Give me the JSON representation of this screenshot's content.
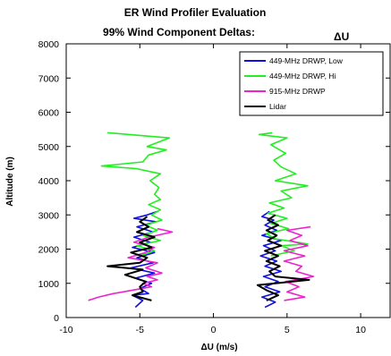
{
  "chart_data": {
    "type": "line",
    "title": "ER Wind Profiler Evaluation",
    "subtitle": "99% Wind Component Deltas:",
    "subtitle_symbol": "ΔU",
    "xlabel": "ΔU (m/s)",
    "ylabel": "Altitude (m)",
    "xlim": [
      -10,
      12
    ],
    "ylim": [
      0,
      8000
    ],
    "xticks": [
      -10,
      -5,
      0,
      5,
      10
    ],
    "yticks": [
      0,
      1000,
      2000,
      3000,
      4000,
      5000,
      6000,
      7000,
      8000
    ],
    "grid": false,
    "legend_position": "top-right",
    "series": [
      {
        "name": "449-MHz DRWP, Low",
        "color": "#1010dd",
        "left": [
          [
            -5.3,
            300
          ],
          [
            -4.8,
            500
          ],
          [
            -5.5,
            650
          ],
          [
            -4.4,
            700
          ],
          [
            -5.0,
            850
          ],
          [
            -4.2,
            1000
          ],
          [
            -5.3,
            1150
          ],
          [
            -4.0,
            1300
          ],
          [
            -5.6,
            1450
          ],
          [
            -4.1,
            1600
          ],
          [
            -5.2,
            1750
          ],
          [
            -4.0,
            1900
          ],
          [
            -5.5,
            2050
          ],
          [
            -4.3,
            2200
          ],
          [
            -5.4,
            2350
          ],
          [
            -4.1,
            2500
          ],
          [
            -5.2,
            2650
          ],
          [
            -3.9,
            2800
          ],
          [
            -5.4,
            2900
          ],
          [
            -4.5,
            3000
          ],
          [
            -3.8,
            3100
          ]
        ],
        "right": [
          [
            3.5,
            300
          ],
          [
            4.2,
            450
          ],
          [
            3.3,
            600
          ],
          [
            4.5,
            750
          ],
          [
            3.5,
            900
          ],
          [
            4.4,
            1050
          ],
          [
            3.4,
            1200
          ],
          [
            4.6,
            1350
          ],
          [
            3.5,
            1500
          ],
          [
            4.3,
            1650
          ],
          [
            3.2,
            1800
          ],
          [
            4.2,
            1950
          ],
          [
            3.4,
            2100
          ],
          [
            4.6,
            2250
          ],
          [
            3.3,
            2400
          ],
          [
            4.3,
            2550
          ],
          [
            3.5,
            2700
          ],
          [
            4.1,
            2850
          ],
          [
            3.3,
            2950
          ],
          [
            3.8,
            3100
          ]
        ]
      },
      {
        "name": "449-MHz DRWP, Hi",
        "color": "#22ee22",
        "left": [
          [
            -5.0,
            1800
          ],
          [
            -4.0,
            1950
          ],
          [
            -5.2,
            2100
          ],
          [
            -3.6,
            2250
          ],
          [
            -4.8,
            2400
          ],
          [
            -3.8,
            2550
          ],
          [
            -4.6,
            2700
          ],
          [
            -3.5,
            2850
          ],
          [
            -4.2,
            3000
          ],
          [
            -3.6,
            3150
          ],
          [
            -4.4,
            3300
          ],
          [
            -3.6,
            3450
          ],
          [
            -4.0,
            3600
          ],
          [
            -3.7,
            3800
          ],
          [
            -4.3,
            4000
          ],
          [
            -3.6,
            4200
          ],
          [
            -5.2,
            4350
          ],
          [
            -7.6,
            4430
          ],
          [
            -4.8,
            4550
          ],
          [
            -4.4,
            4750
          ],
          [
            -3.2,
            4900
          ],
          [
            -4.5,
            5000
          ],
          [
            -3.0,
            5250
          ],
          [
            -7.2,
            5400
          ]
        ],
        "right": [
          [
            3.9,
            1800
          ],
          [
            5.5,
            1950
          ],
          [
            4.6,
            2100
          ],
          [
            6.4,
            2150
          ],
          [
            4.2,
            2300
          ],
          [
            3.6,
            2450
          ],
          [
            5.1,
            2600
          ],
          [
            3.9,
            2750
          ],
          [
            5.0,
            2900
          ],
          [
            3.7,
            3050
          ],
          [
            4.8,
            3200
          ],
          [
            3.8,
            3350
          ],
          [
            5.3,
            3500
          ],
          [
            4.6,
            3700
          ],
          [
            6.4,
            3850
          ],
          [
            4.2,
            4000
          ],
          [
            5.6,
            4200
          ],
          [
            4.6,
            4400
          ],
          [
            4.1,
            4600
          ],
          [
            4.9,
            4800
          ],
          [
            3.9,
            5050
          ],
          [
            5.0,
            5250
          ],
          [
            3.1,
            5350
          ],
          [
            4.0,
            5400
          ]
        ]
      },
      {
        "name": "915-MHz DRWP",
        "color": "#ee22cc",
        "left": [
          [
            -8.5,
            500
          ],
          [
            -7.8,
            600
          ],
          [
            -6.8,
            700
          ],
          [
            -5.5,
            800
          ],
          [
            -4.2,
            900
          ],
          [
            -4.8,
            1000
          ],
          [
            -3.8,
            1100
          ],
          [
            -4.5,
            1200
          ],
          [
            -3.5,
            1300
          ],
          [
            -4.6,
            1450
          ],
          [
            -3.8,
            1600
          ],
          [
            -5.8,
            1750
          ],
          [
            -4.6,
            1900
          ],
          [
            -4.0,
            2050
          ],
          [
            -5.4,
            2200
          ],
          [
            -4.4,
            2350
          ],
          [
            -2.8,
            2500
          ],
          [
            -3.8,
            2600
          ]
        ],
        "right": [
          [
            4.8,
            500
          ],
          [
            6.2,
            600
          ],
          [
            5.0,
            750
          ],
          [
            5.8,
            900
          ],
          [
            4.9,
            1050
          ],
          [
            6.8,
            1200
          ],
          [
            5.6,
            1350
          ],
          [
            6.0,
            1500
          ],
          [
            4.8,
            1650
          ],
          [
            6.2,
            1800
          ],
          [
            4.8,
            1950
          ],
          [
            6.4,
            2100
          ],
          [
            5.2,
            2250
          ],
          [
            6.0,
            2400
          ],
          [
            5.0,
            2550
          ],
          [
            6.6,
            2650
          ]
        ]
      },
      {
        "name": "Lidar",
        "color": "#000000",
        "left": [
          [
            -4.2,
            500
          ],
          [
            -5.5,
            650
          ],
          [
            -4.8,
            750
          ],
          [
            -5.0,
            900
          ],
          [
            -4.6,
            1050
          ],
          [
            -6.0,
            1250
          ],
          [
            -4.8,
            1400
          ],
          [
            -7.2,
            1500
          ],
          [
            -5.0,
            1600
          ],
          [
            -4.5,
            1750
          ],
          [
            -5.6,
            1900
          ],
          [
            -4.2,
            2050
          ],
          [
            -5.0,
            2200
          ],
          [
            -4.0,
            2350
          ],
          [
            -5.2,
            2500
          ],
          [
            -4.4,
            2650
          ],
          [
            -5.0,
            2800
          ],
          [
            -4.5,
            2950
          ]
        ],
        "right": [
          [
            3.6,
            500
          ],
          [
            4.4,
            650
          ],
          [
            3.6,
            800
          ],
          [
            3.0,
            950
          ],
          [
            4.2,
            1000
          ],
          [
            6.5,
            1100
          ],
          [
            4.2,
            1200
          ],
          [
            3.8,
            1350
          ],
          [
            4.5,
            1500
          ],
          [
            3.6,
            1650
          ],
          [
            4.4,
            1800
          ],
          [
            3.5,
            1950
          ],
          [
            4.6,
            2100
          ],
          [
            3.7,
            2250
          ],
          [
            4.3,
            2400
          ],
          [
            3.6,
            2550
          ],
          [
            4.4,
            2700
          ],
          [
            3.7,
            2850
          ],
          [
            4.2,
            3000
          ]
        ]
      }
    ]
  }
}
